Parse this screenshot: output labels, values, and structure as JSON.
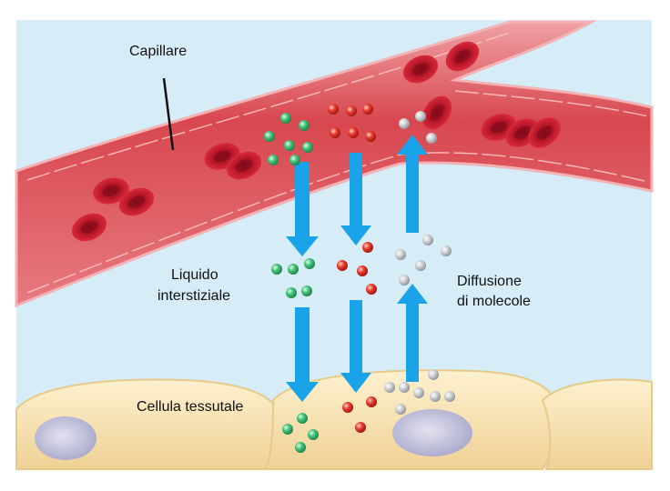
{
  "labels": {
    "capillary": "Capillare",
    "interstitial_fluid_line1": "Liquido",
    "interstitial_fluid_line2": "interstiziale",
    "diffusion_line1": "Diffusione",
    "diffusion_line2": "di molecole",
    "tissue_cell": "Cellula tessutale"
  },
  "colors": {
    "fluid_background": "#d6ecf7",
    "vessel": "#d9505a",
    "vessel_wall": "#f2a3a6",
    "red_blood_cell": "#c0182a",
    "arrow": "#1aa3e8",
    "green_molecule": "#3cb371",
    "red_molecule": "#e0332b",
    "gray_molecule": "#b9bcbf",
    "tissue_cell": "#f6dfa8",
    "nucleus": "#c9c8e0"
  }
}
